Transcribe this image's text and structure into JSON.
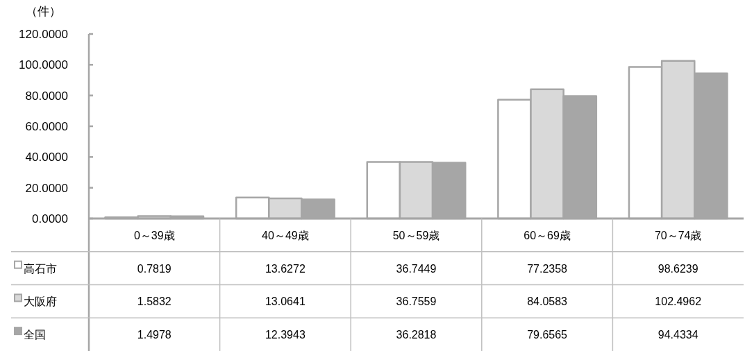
{
  "chart_data": {
    "type": "bar",
    "ylabel": "（件）",
    "categories": [
      "0～39歳",
      "40～49歳",
      "50～59歳",
      "60～69歳",
      "70～74歳"
    ],
    "series": [
      {
        "name": "高石市",
        "color": "#ffffff",
        "values": [
          0.7819,
          13.6272,
          36.7449,
          77.2358,
          98.6239
        ]
      },
      {
        "name": "大阪府",
        "color": "#d9d9d9",
        "values": [
          1.5832,
          13.0641,
          36.7559,
          84.0583,
          102.4962
        ]
      },
      {
        "name": "全国",
        "color": "#a6a6a6",
        "values": [
          1.4978,
          12.3943,
          36.2818,
          79.6565,
          94.4334
        ]
      }
    ],
    "ylim": [
      0,
      120
    ],
    "yticks": [
      {
        "value": 0,
        "label": "0.0000"
      },
      {
        "value": 20,
        "label": "20.0000"
      },
      {
        "value": 40,
        "label": "40.0000"
      },
      {
        "value": 60,
        "label": "60.0000"
      },
      {
        "value": 80,
        "label": "80.0000"
      },
      {
        "value": 100,
        "label": "100.0000"
      },
      {
        "value": 120,
        "label": "120.0000"
      }
    ],
    "data_labels": true,
    "legend": "bottom",
    "grid": false
  }
}
